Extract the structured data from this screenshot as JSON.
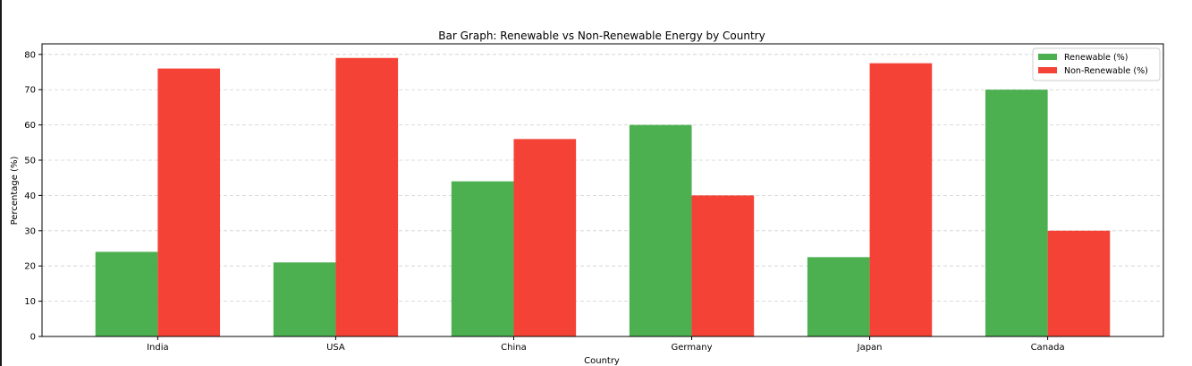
{
  "chart_data": {
    "type": "bar",
    "title": "Bar Graph: Renewable vs Non-Renewable Energy by Country",
    "xlabel": "Country",
    "ylabel": "Percentage (%)",
    "categories": [
      "India",
      "USA",
      "China",
      "Germany",
      "Japan",
      "Canada"
    ],
    "series": [
      {
        "name": "Renewable (%)",
        "color": "#4caf50",
        "values": [
          24,
          21,
          44,
          60,
          22.5,
          70
        ]
      },
      {
        "name": "Non-Renewable (%)",
        "color": "#f44336",
        "values": [
          76,
          79,
          56,
          40,
          77.5,
          30
        ]
      }
    ],
    "ylim": [
      0,
      83
    ],
    "yticks": [
      0,
      10,
      20,
      30,
      40,
      50,
      60,
      70,
      80
    ],
    "grid": "y-dashed",
    "legend_position": "top-right"
  }
}
